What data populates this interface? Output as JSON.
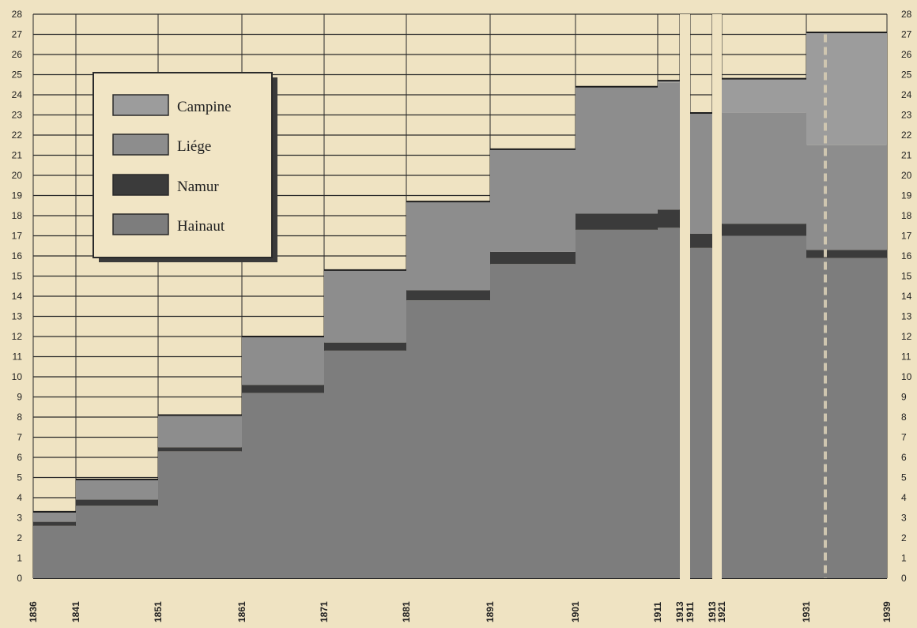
{
  "chart_data": {
    "type": "bar",
    "stacked": true,
    "ylim": [
      0,
      28
    ],
    "y_ticks": [
      0,
      1,
      2,
      3,
      4,
      5,
      6,
      7,
      8,
      9,
      10,
      11,
      12,
      13,
      14,
      15,
      16,
      17,
      18,
      19,
      20,
      21,
      22,
      23,
      24,
      25,
      26,
      27,
      28
    ],
    "x_tick_labels": [
      "1836",
      "1841",
      "1851",
      "1861",
      "1871",
      "1881",
      "1891",
      "1901",
      "1911",
      "1913",
      "1911",
      "1913",
      "1921",
      "1931",
      "1939"
    ],
    "grid": true,
    "legend_position": "top-left",
    "series": [
      {
        "name": "Hainaut",
        "color": "#7d7d7d"
      },
      {
        "name": "Namur",
        "color": "#3b3b3b"
      },
      {
        "name": "Liége",
        "color": "#8d8d8d"
      },
      {
        "name": "Campine",
        "color": "#9c9c9c"
      }
    ],
    "legend": [
      "Campine",
      "Liége",
      "Namur",
      "Hainaut"
    ],
    "periods": [
      {
        "from": "1836",
        "to": "1841",
        "Hainaut": 2.6,
        "Namur": 0.2,
        "Liége": 0.5,
        "Campine": 0
      },
      {
        "from": "1841",
        "to": "1851",
        "Hainaut": 3.6,
        "Namur": 0.3,
        "Liége": 1.0,
        "Campine": 0
      },
      {
        "from": "1851",
        "to": "1861",
        "Hainaut": 6.3,
        "Namur": 0.2,
        "Liége": 1.6,
        "Campine": 0
      },
      {
        "from": "1861",
        "to": "1871",
        "Hainaut": 9.2,
        "Namur": 0.4,
        "Liége": 2.4,
        "Campine": 0
      },
      {
        "from": "1871",
        "to": "1881",
        "Hainaut": 11.3,
        "Namur": 0.4,
        "Liége": 3.6,
        "Campine": 0
      },
      {
        "from": "1881",
        "to": "1891",
        "Hainaut": 13.8,
        "Namur": 0.5,
        "Liége": 4.4,
        "Campine": 0
      },
      {
        "from": "1891",
        "to": "1901",
        "Hainaut": 15.6,
        "Namur": 0.6,
        "Liége": 5.1,
        "Campine": 0
      },
      {
        "from": "1901",
        "to": "1911",
        "Hainaut": 17.3,
        "Namur": 0.8,
        "Liége": 6.3,
        "Campine": 0
      },
      {
        "from": "1911",
        "to": "1913",
        "Hainaut": 17.4,
        "Namur": 0.9,
        "Liége": 6.3,
        "Campine": 0.1
      },
      {
        "from": "1911",
        "to": "1913",
        "Hainaut": 16.4,
        "Namur": 0.7,
        "Liége": 6.0,
        "Campine": 0
      },
      {
        "from": "1913",
        "to": "1921",
        "Hainaut": 0,
        "Namur": 0,
        "Liége": 0,
        "Campine": 0
      },
      {
        "from": "1921",
        "to": "1931",
        "Hainaut": 17.0,
        "Namur": 0.6,
        "Liége": 5.5,
        "Campine": 1.7
      },
      {
        "from": "1931",
        "to": "1939",
        "Hainaut": 15.9,
        "Namur": 0.4,
        "Liége": 5.2,
        "Campine": 5.6
      }
    ]
  }
}
